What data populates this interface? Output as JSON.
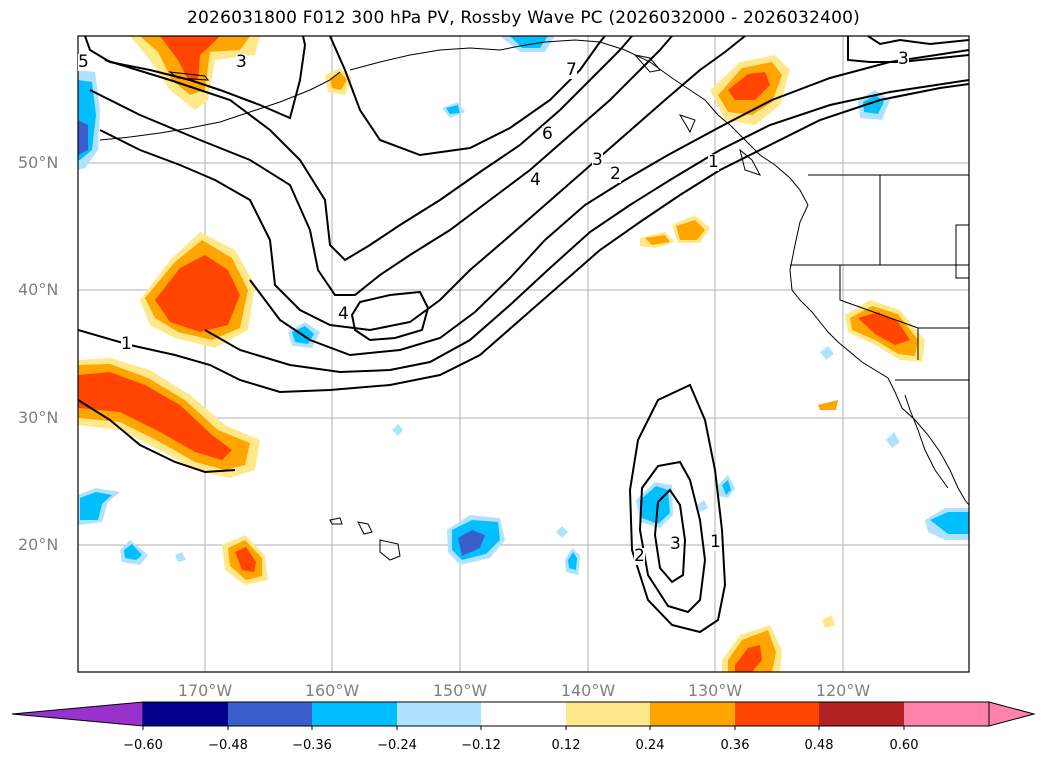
{
  "title": "2026031800 F012 300 hPa PV, Rossby Wave PC (2026032000 - 2026032400)",
  "lat_labels": [
    "50°N",
    "40°N",
    "30°N",
    "20°N"
  ],
  "lon_labels": [
    "170°W",
    "160°W",
    "150°W",
    "140°W",
    "130°W",
    "120°W"
  ],
  "contour_labels": [
    "1",
    "1",
    "1",
    "2",
    "2",
    "3",
    "3",
    "3",
    "4",
    "4",
    "5",
    "6",
    "7"
  ],
  "colorbar": {
    "ticks": [
      "−0.60",
      "−0.48",
      "−0.36",
      "−0.24",
      "−0.12",
      "0.12",
      "0.24",
      "0.36",
      "0.48",
      "0.60"
    ],
    "colors": [
      "#9932cc",
      "#00008b",
      "#3a5fcd",
      "#00bfff",
      "#b0e2ff",
      "#ffffff",
      "#ffe88a",
      "#ffa500",
      "#ff4500",
      "#b22222",
      "#ff82ab",
      "#ff82ab"
    ]
  },
  "map_colors": {
    "land_outline": "#000000",
    "gridline": "#b0b0b0",
    "contour": "#000000"
  }
}
